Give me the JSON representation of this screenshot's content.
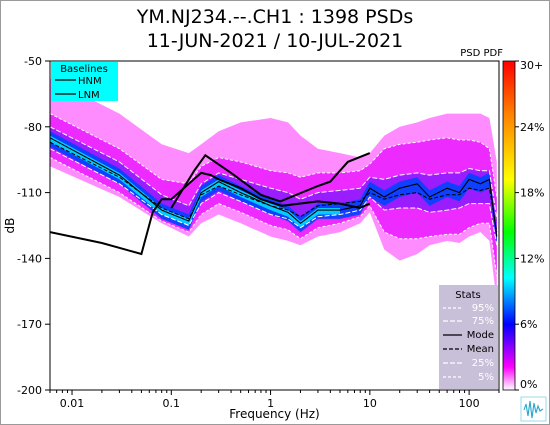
{
  "header": {
    "title_line1": "YM.NJ234.--.CH1 : 1398 PSDs",
    "title_line2": "11-JUN-2021 / 10-JUL-2021"
  },
  "chart_data": {
    "type": "heatmap",
    "title": "YM.NJ234.--.CH1 : 1398 PSDs",
    "subtitle": "11-JUN-2021 / 10-JUL-2021",
    "xlabel": "Frequency (Hz)",
    "ylabel": "dB",
    "x_scale": "log",
    "xlim": [
      0.006,
      200
    ],
    "ylim": [
      -200,
      -50
    ],
    "x_tick_values": [
      0.01,
      0.1,
      1,
      10,
      100
    ],
    "x_tick_labels": [
      "0.01",
      "0.1",
      "1",
      "10",
      "100"
    ],
    "y_tick_values": [
      -50,
      -80,
      -110,
      -140,
      -170,
      -200
    ],
    "y_tick_labels": [
      "-50",
      "-80",
      "-110",
      "-140",
      "-170",
      "-200"
    ],
    "corner_label": "PSD PDF",
    "colorbar": {
      "tick_labels": [
        "30+",
        "24%",
        "18%",
        "12%",
        "6%",
        "0%"
      ],
      "colors": [
        "#ff0000",
        "#ff8000",
        "#ffff00",
        "#00ff00",
        "#00ffff",
        "#0000ff",
        "#ff00ff",
        "#ffffff"
      ]
    },
    "baselines_legend": {
      "title": "Baselines",
      "items": [
        "HNM",
        "LNM"
      ],
      "background": "#00ffff"
    },
    "stats_legend": {
      "title": "Stats",
      "items": [
        "95%",
        "75%",
        "Mode",
        "Mean",
        "25%",
        "5%"
      ],
      "background": "#c8bfd8"
    },
    "series": [
      {
        "name": "HNM",
        "x": [
          0.1,
          0.17,
          0.22,
          0.4,
          0.8,
          1.25,
          3,
          4,
          5,
          6,
          10
        ],
        "y": [
          -117,
          -100,
          -93,
          -101,
          -111,
          -114,
          -107,
          -105,
          -100,
          -96,
          -92
        ]
      },
      {
        "name": "LNM",
        "x": [
          0.006,
          0.02,
          0.05,
          0.065,
          0.08,
          0.1,
          0.15,
          0.2,
          0.25,
          0.3,
          0.5,
          0.8,
          1.3,
          3,
          5,
          7.9,
          10
        ],
        "y": [
          -128,
          -133,
          -138,
          -119,
          -113,
          -113,
          -106,
          -101,
          -102,
          -104,
          -108,
          -113,
          -116,
          -114,
          -115,
          -117,
          -115
        ]
      },
      {
        "name": "Mode",
        "x": [
          0.006,
          0.03,
          0.08,
          0.15,
          0.2,
          0.3,
          0.5,
          1,
          1.5,
          2,
          3,
          5,
          8,
          10,
          14,
          20,
          30,
          40,
          60,
          80,
          100,
          130,
          160,
          190
        ],
        "y": [
          -85,
          -102,
          -118,
          -123,
          -110,
          -105,
          -110,
          -116,
          -119,
          -124,
          -118,
          -118,
          -116,
          -108,
          -112,
          -108,
          -106,
          -112,
          -108,
          -110,
          -104,
          -106,
          -104,
          -130
        ]
      },
      {
        "name": "Mean",
        "x": [
          0.006,
          0.03,
          0.08,
          0.15,
          0.2,
          0.3,
          0.5,
          1,
          1.5,
          2,
          3,
          5,
          8,
          10,
          14,
          20,
          30,
          40,
          60,
          80,
          100,
          130,
          160,
          190
        ],
        "y": [
          -87,
          -103,
          -117,
          -122,
          -111,
          -107,
          -111,
          -116,
          -118,
          -121,
          -116,
          -115,
          -114,
          -110,
          -113,
          -111,
          -110,
          -113,
          -111,
          -111,
          -108,
          -109,
          -108,
          -128
        ]
      },
      {
        "name": "95%",
        "x": [
          0.006,
          0.03,
          0.08,
          0.15,
          0.2,
          0.3,
          0.5,
          1,
          1.5,
          2,
          3,
          5,
          8,
          10,
          14,
          20,
          30,
          40,
          60,
          80,
          100,
          130,
          160,
          190
        ],
        "y": [
          -74,
          -90,
          -104,
          -106,
          -98,
          -94,
          -96,
          -100,
          -101,
          -103,
          -101,
          -101,
          -100,
          -97,
          -90,
          -88,
          -87,
          -86,
          -85,
          -86,
          -86,
          -87,
          -90,
          -112
        ]
      },
      {
        "name": "75%",
        "x": [
          0.006,
          0.03,
          0.08,
          0.15,
          0.2,
          0.3,
          0.5,
          1,
          1.5,
          2,
          3,
          5,
          8,
          10,
          14,
          20,
          30,
          40,
          60,
          80,
          100,
          130,
          160,
          190
        ],
        "y": [
          -80,
          -96,
          -111,
          -116,
          -106,
          -101,
          -104,
          -108,
          -110,
          -113,
          -110,
          -109,
          -108,
          -103,
          -104,
          -102,
          -101,
          -102,
          -101,
          -101,
          -99,
          -100,
          -100,
          -122
        ]
      },
      {
        "name": "25%",
        "x": [
          0.006,
          0.03,
          0.08,
          0.15,
          0.2,
          0.3,
          0.5,
          1,
          1.5,
          2,
          3,
          5,
          8,
          10,
          14,
          20,
          30,
          40,
          60,
          80,
          100,
          130,
          160,
          190
        ],
        "y": [
          -90,
          -106,
          -120,
          -125,
          -115,
          -110,
          -114,
          -120,
          -122,
          -126,
          -121,
          -120,
          -118,
          -112,
          -118,
          -117,
          -117,
          -119,
          -118,
          -117,
          -115,
          -115,
          -115,
          -134
        ]
      },
      {
        "name": "5%",
        "x": [
          0.006,
          0.03,
          0.08,
          0.15,
          0.2,
          0.3,
          0.5,
          1,
          1.5,
          2,
          3,
          5,
          8,
          10,
          14,
          20,
          30,
          40,
          60,
          80,
          100,
          130,
          160,
          190
        ],
        "y": [
          -94,
          -110,
          -123,
          -128,
          -120,
          -115,
          -119,
          -125,
          -127,
          -131,
          -126,
          -124,
          -121,
          -116,
          -128,
          -131,
          -131,
          -130,
          -129,
          -129,
          -126,
          -124,
          -124,
          -148
        ]
      },
      {
        "name": "PDF upper edge",
        "x": [
          0.006,
          0.03,
          0.08,
          0.15,
          0.2,
          0.3,
          0.5,
          1,
          1.5,
          2,
          3,
          5,
          8,
          10,
          14,
          20,
          30,
          40,
          60,
          80,
          100,
          130,
          160,
          190
        ],
        "y": [
          -58,
          -74,
          -88,
          -92,
          -88,
          -82,
          -78,
          -76,
          -78,
          -84,
          -90,
          -92,
          -94,
          -92,
          -84,
          -80,
          -78,
          -76,
          -74,
          -74,
          -74,
          -74,
          -76,
          -96
        ]
      },
      {
        "name": "PDF lower edge",
        "x": [
          0.006,
          0.03,
          0.08,
          0.15,
          0.2,
          0.3,
          0.5,
          1,
          1.5,
          2,
          3,
          5,
          8,
          10,
          14,
          20,
          30,
          40,
          60,
          80,
          100,
          130,
          160,
          190
        ],
        "y": [
          -98,
          -112,
          -124,
          -130,
          -124,
          -120,
          -124,
          -130,
          -132,
          -134,
          -130,
          -128,
          -124,
          -119,
          -136,
          -141,
          -138,
          -134,
          -132,
          -133,
          -130,
          -128,
          -132,
          -160
        ]
      }
    ]
  }
}
